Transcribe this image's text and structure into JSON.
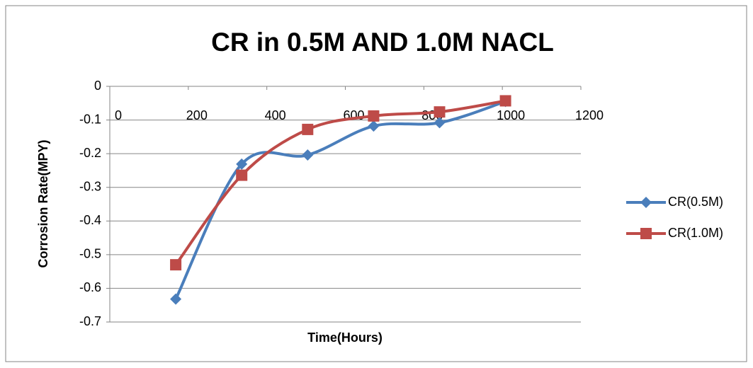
{
  "chart_data": {
    "type": "line",
    "title": "CR in 0.5M AND 1.0M NACL",
    "x_label": "Time(Hours)",
    "y_label": "Corrosion Rate(MPY)",
    "x": [
      168,
      336,
      504,
      672,
      840,
      1008
    ],
    "series": [
      {
        "name": "CR(0.5M)",
        "color": "#4a7ebb",
        "marker": "diamond",
        "values": [
          -0.632,
          -0.231,
          -0.204,
          -0.118,
          -0.108,
          -0.045
        ]
      },
      {
        "name": "CR(1.0M)",
        "color": "#be4b48",
        "marker": "square",
        "values": [
          -0.53,
          -0.264,
          -0.128,
          -0.088,
          -0.076,
          -0.043
        ]
      }
    ],
    "xlim": [
      0,
      1200
    ],
    "xticks": [
      0,
      200,
      400,
      600,
      800,
      1000,
      1200
    ],
    "ylim": [
      -0.7,
      0
    ],
    "yticks": [
      0,
      -0.1,
      -0.2,
      -0.3,
      -0.4,
      -0.5,
      -0.6,
      -0.7
    ],
    "grid": true,
    "smooth": true,
    "legend": "right"
  }
}
